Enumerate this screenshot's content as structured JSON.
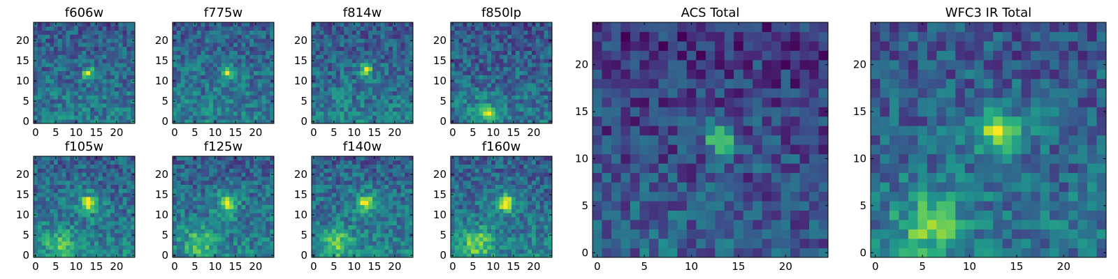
{
  "chart_data": [
    {
      "type": "heatmap",
      "title": "f606w",
      "xlim": [
        0,
        24
      ],
      "ylim": [
        0,
        24
      ],
      "xticks": [
        0,
        5,
        10,
        15,
        20
      ],
      "yticks": [
        0,
        5,
        10,
        15,
        20
      ],
      "colormap": "viridis",
      "peak": [
        13,
        12
      ],
      "level": 0.42,
      "blob": 0.0
    },
    {
      "type": "heatmap",
      "title": "f775w",
      "xlim": [
        0,
        24
      ],
      "ylim": [
        0,
        24
      ],
      "xticks": [
        0,
        5,
        10,
        15,
        20
      ],
      "yticks": [
        0,
        5,
        10,
        15,
        20
      ],
      "colormap": "viridis",
      "peak": [
        13,
        12
      ],
      "level": 0.44,
      "blob": 0.05
    },
    {
      "type": "heatmap",
      "title": "f814w",
      "xlim": [
        0,
        24
      ],
      "ylim": [
        0,
        24
      ],
      "xticks": [
        0,
        5,
        10,
        15,
        20
      ],
      "yticks": [
        0,
        5,
        10,
        15,
        20
      ],
      "colormap": "viridis",
      "peak": [
        13,
        13
      ],
      "level": 0.42,
      "blob": 0.15
    },
    {
      "type": "heatmap",
      "title": "f850lp",
      "xlim": [
        0,
        24
      ],
      "ylim": [
        0,
        24
      ],
      "xticks": [
        0,
        5,
        10,
        15,
        20
      ],
      "yticks": [
        0,
        5,
        10,
        15,
        20
      ],
      "colormap": "viridis",
      "peak": [
        9,
        2
      ],
      "level": 0.4,
      "blob": 0.25
    },
    {
      "type": "heatmap",
      "title": "f105w",
      "xlim": [
        0,
        24
      ],
      "ylim": [
        0,
        24
      ],
      "xticks": [
        0,
        5,
        10,
        15,
        20
      ],
      "yticks": [
        0,
        5,
        10,
        15,
        20
      ],
      "colormap": "viridis",
      "peak": [
        13,
        13
      ],
      "level": 0.45,
      "blob": 0.7
    },
    {
      "type": "heatmap",
      "title": "f125w",
      "xlim": [
        0,
        24
      ],
      "ylim": [
        0,
        24
      ],
      "xticks": [
        0,
        5,
        10,
        15,
        20
      ],
      "yticks": [
        0,
        5,
        10,
        15,
        20
      ],
      "colormap": "viridis",
      "peak": [
        13,
        13
      ],
      "level": 0.45,
      "blob": 0.8
    },
    {
      "type": "heatmap",
      "title": "f140w",
      "xlim": [
        0,
        24
      ],
      "ylim": [
        0,
        24
      ],
      "xticks": [
        0,
        5,
        10,
        15,
        20
      ],
      "yticks": [
        0,
        5,
        10,
        15,
        20
      ],
      "colormap": "viridis",
      "peak": [
        13,
        13
      ],
      "level": 0.45,
      "blob": 0.85
    },
    {
      "type": "heatmap",
      "title": "f160w",
      "xlim": [
        0,
        24
      ],
      "ylim": [
        0,
        24
      ],
      "xticks": [
        0,
        5,
        10,
        15,
        20
      ],
      "yticks": [
        0,
        5,
        10,
        15,
        20
      ],
      "colormap": "viridis",
      "peak": [
        13,
        13
      ],
      "level": 0.45,
      "blob": 0.9
    },
    {
      "type": "heatmap",
      "title": "ACS Total",
      "xlim": [
        0,
        24
      ],
      "ylim": [
        0,
        24
      ],
      "xticks": [
        0,
        5,
        10,
        15,
        20
      ],
      "yticks": [
        0,
        5,
        10,
        15,
        20
      ],
      "colormap": "viridis",
      "peak": [
        13,
        12
      ],
      "level": 0.3,
      "blob": 0.1
    },
    {
      "type": "heatmap",
      "title": "WFC3 IR Total",
      "xlim": [
        0,
        24
      ],
      "ylim": [
        0,
        24
      ],
      "xticks": [
        0,
        5,
        10,
        15,
        20
      ],
      "yticks": [
        0,
        5,
        10,
        15,
        20
      ],
      "colormap": "viridis",
      "peak": [
        13,
        13
      ],
      "level": 0.4,
      "blob": 0.9
    }
  ]
}
